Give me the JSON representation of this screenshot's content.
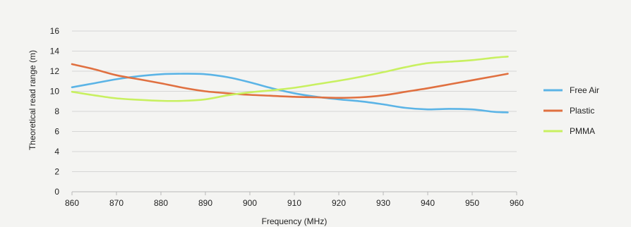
{
  "chart_data": {
    "type": "line",
    "xlabel": "Frequency (MHz)",
    "ylabel": "Theoretical read range (m)",
    "xlim": [
      860,
      960
    ],
    "ylim": [
      0,
      16
    ],
    "xticks": [
      860,
      870,
      880,
      890,
      900,
      910,
      920,
      930,
      940,
      950,
      960
    ],
    "yticks": [
      0,
      2,
      4,
      6,
      8,
      10,
      12,
      14,
      16
    ],
    "grid": "horizontal",
    "legend_position": "right",
    "series": [
      {
        "name": "Free Air",
        "color": "#5bb4e6",
        "x": [
          860,
          865,
          870,
          875,
          880,
          885,
          890,
          895,
          900,
          905,
          910,
          915,
          920,
          925,
          930,
          935,
          940,
          945,
          950,
          955,
          958
        ],
        "values": [
          10.4,
          10.8,
          11.2,
          11.5,
          11.7,
          11.75,
          11.7,
          11.4,
          10.9,
          10.3,
          9.8,
          9.45,
          9.2,
          9.0,
          8.7,
          8.35,
          8.2,
          8.25,
          8.2,
          7.95,
          7.9
        ]
      },
      {
        "name": "Plastic",
        "color": "#e07040",
        "x": [
          860,
          865,
          870,
          875,
          880,
          885,
          890,
          895,
          900,
          905,
          910,
          915,
          920,
          925,
          930,
          935,
          940,
          945,
          950,
          955,
          958
        ],
        "values": [
          12.7,
          12.2,
          11.6,
          11.2,
          10.8,
          10.35,
          10.0,
          9.8,
          9.65,
          9.55,
          9.45,
          9.4,
          9.35,
          9.4,
          9.6,
          9.95,
          10.3,
          10.7,
          11.1,
          11.5,
          11.75
        ]
      },
      {
        "name": "PMMA",
        "color": "#c8f060",
        "x": [
          860,
          865,
          870,
          875,
          880,
          885,
          890,
          895,
          900,
          905,
          910,
          915,
          920,
          925,
          930,
          935,
          940,
          945,
          950,
          955,
          958
        ],
        "values": [
          9.95,
          9.6,
          9.3,
          9.15,
          9.05,
          9.05,
          9.2,
          9.6,
          9.9,
          10.1,
          10.35,
          10.7,
          11.05,
          11.45,
          11.9,
          12.4,
          12.8,
          12.95,
          13.1,
          13.35,
          13.45
        ]
      }
    ]
  }
}
